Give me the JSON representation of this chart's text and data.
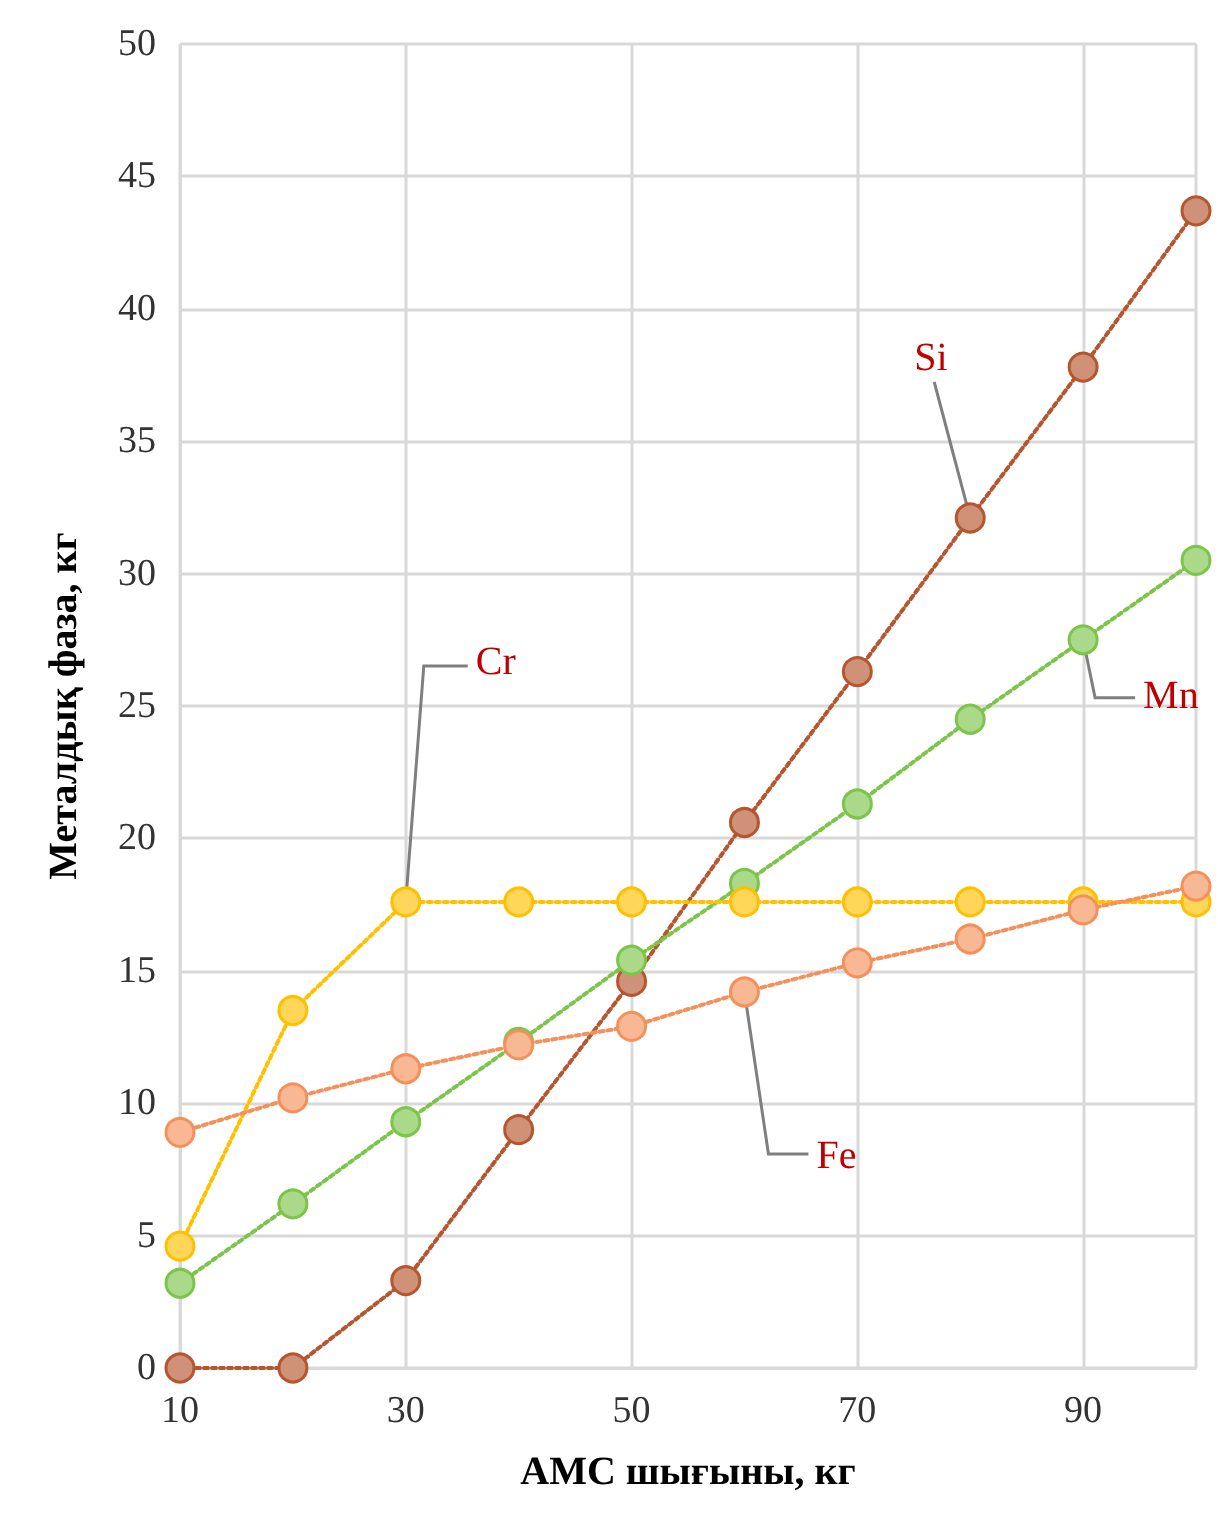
{
  "chart_data": {
    "type": "line",
    "xlabel": "АМС шығыны, кг",
    "ylabel": "Металдық фаза, кг",
    "x": [
      10,
      20,
      30,
      40,
      50,
      60,
      70,
      80,
      90,
      100
    ],
    "series": [
      {
        "color": "#b5562e",
        "values": [
          0,
          0,
          3.3,
          9,
          14.6,
          20.6,
          26.3,
          32.1,
          37.8,
          43.7
        ]
      },
      {
        "color": "#7cc44a",
        "values": [
          3.2,
          6.2,
          9.3,
          12.3,
          15.4,
          18.3,
          21.3,
          24.5,
          27.5,
          30.5
        ]
      },
      {
        "color": "#ffc000",
        "values": [
          4.6,
          13.5,
          17.6,
          17.6,
          17.6,
          17.6,
          17.6,
          17.6,
          17.6,
          17.6
        ]
      },
      {
        "color": "#f4915a",
        "values": [
          8.9,
          10.2,
          11.3,
          12.2,
          12.9,
          14.2,
          15.3,
          16.2,
          17.3,
          18.2
        ]
      }
    ],
    "xlim": [
      10,
      100
    ],
    "xticks": [
      10,
      30,
      50,
      70,
      90
    ],
    "ylim": [
      0,
      50
    ],
    "yticks": [
      0,
      5,
      10,
      15,
      20,
      25,
      30,
      35,
      40,
      45,
      50
    ],
    "grid": true,
    "marker": "circle",
    "line_style": "dotted",
    "annotations": [
      {
        "text": "Si",
        "x": 80,
        "y": 32.1
      },
      {
        "text": "Mn",
        "x": 90,
        "y": 27.5
      },
      {
        "text": "Cr",
        "x": 30,
        "y": 17.6
      },
      {
        "text": "Fe",
        "x": 60,
        "y": 14.2
      }
    ]
  }
}
